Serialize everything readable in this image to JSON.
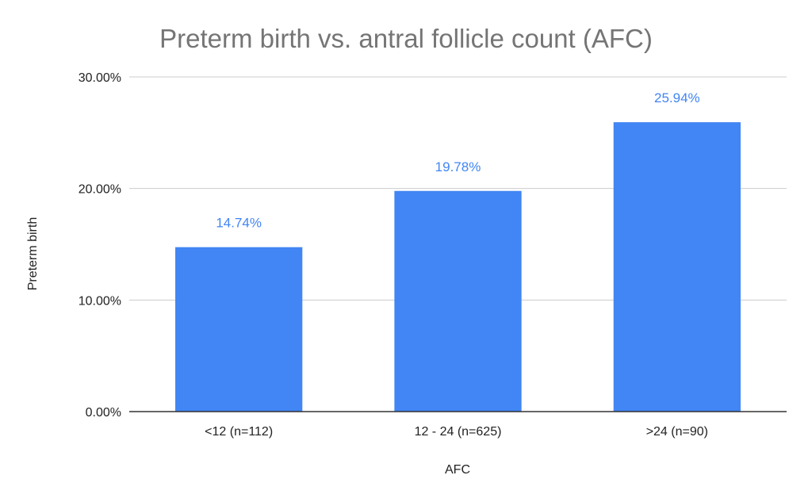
{
  "chart_data": {
    "type": "bar",
    "title": "Preterm birth vs. antral follicle count (AFC)",
    "xlabel": "AFC",
    "ylabel": "Preterm birth",
    "categories": [
      "<12 (n=112)",
      "12 - 24 (n=625)",
      ">24 (n=90)"
    ],
    "values": [
      14.74,
      19.78,
      25.94
    ],
    "data_labels": [
      "14.74%",
      "19.78%",
      "25.94%"
    ],
    "ylim": [
      0,
      30
    ],
    "yticks": [
      0,
      10,
      20,
      30
    ],
    "ytick_labels": [
      "0.00%",
      "10.00%",
      "20.00%",
      "30.00%"
    ],
    "grid": true,
    "legend": "none",
    "colors": {
      "bar": "#4285f4",
      "label": "#4285f4"
    }
  }
}
